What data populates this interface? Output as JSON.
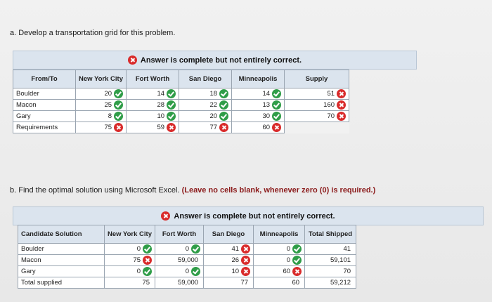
{
  "part_a": {
    "prompt": "a. Develop a transportation grid for this problem.",
    "banner": "Answer is complete but not entirely correct.",
    "headers": [
      "From/To",
      "New York City",
      "Fort Worth",
      "San Diego",
      "Minneapolis",
      "Supply"
    ],
    "rows": [
      {
        "label": "Boulder",
        "cells": [
          {
            "v": "20",
            "s": "ok"
          },
          {
            "v": "14",
            "s": "ok"
          },
          {
            "v": "18",
            "s": "ok"
          },
          {
            "v": "14",
            "s": "ok"
          },
          {
            "v": "51",
            "s": "x"
          }
        ]
      },
      {
        "label": "Macon",
        "cells": [
          {
            "v": "25",
            "s": "ok"
          },
          {
            "v": "28",
            "s": "ok"
          },
          {
            "v": "22",
            "s": "ok"
          },
          {
            "v": "13",
            "s": "ok"
          },
          {
            "v": "160",
            "s": "x"
          }
        ]
      },
      {
        "label": "Gary",
        "cells": [
          {
            "v": "8",
            "s": "ok"
          },
          {
            "v": "10",
            "s": "ok"
          },
          {
            "v": "20",
            "s": "ok"
          },
          {
            "v": "30",
            "s": "ok"
          },
          {
            "v": "70",
            "s": "x"
          }
        ]
      },
      {
        "label": "Requirements",
        "cells": [
          {
            "v": "75",
            "s": "x"
          },
          {
            "v": "59",
            "s": "x"
          },
          {
            "v": "77",
            "s": "x"
          },
          {
            "v": "60",
            "s": "x"
          },
          null
        ]
      }
    ]
  },
  "part_b": {
    "prompt_plain": "b. Find the optimal solution using Microsoft Excel. ",
    "prompt_bold": "(Leave no cells blank, whenever zero (0) is required.)",
    "banner": "Answer is complete but not entirely correct.",
    "headers": [
      "Candidate Solution",
      "New York City",
      "Fort Worth",
      "San Diego",
      "Minneapolis",
      "Total Shipped"
    ],
    "rows": [
      {
        "label": "Boulder",
        "cells": [
          {
            "v": "0",
            "s": "ok"
          },
          {
            "v": "0",
            "s": "ok"
          },
          {
            "v": "41",
            "s": "x"
          },
          {
            "v": "0",
            "s": "ok"
          },
          {
            "v": "41",
            "s": ""
          }
        ]
      },
      {
        "label": "Macon",
        "cells": [
          {
            "v": "75",
            "s": "x"
          },
          {
            "v": "59,000",
            "s": ""
          },
          {
            "v": "26",
            "s": "x"
          },
          {
            "v": "0",
            "s": "ok"
          },
          {
            "v": "59,101",
            "s": ""
          }
        ]
      },
      {
        "label": "Gary",
        "cells": [
          {
            "v": "0",
            "s": "ok"
          },
          {
            "v": "0",
            "s": "ok"
          },
          {
            "v": "10",
            "s": "x"
          },
          {
            "v": "60",
            "s": "x"
          },
          {
            "v": "70",
            "s": ""
          }
        ]
      },
      {
        "label": "Total supplied",
        "cells": [
          {
            "v": "75",
            "s": ""
          },
          {
            "v": "59,000",
            "s": ""
          },
          {
            "v": "77",
            "s": ""
          },
          {
            "v": "60",
            "s": ""
          },
          {
            "v": "59,212",
            "s": ""
          }
        ]
      }
    ]
  },
  "colors": {
    "correct": "#2f9d48",
    "incorrect": "#d92b2b",
    "header_bg": "#dbe4ee"
  }
}
